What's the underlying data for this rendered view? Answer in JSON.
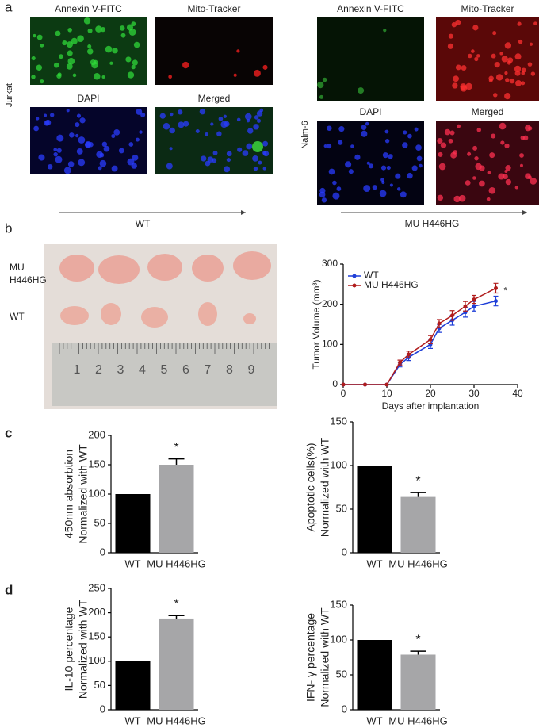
{
  "figure": {
    "panel_labels": [
      "a",
      "b",
      "c",
      "d"
    ]
  },
  "panel_a": {
    "groups": [
      {
        "cell_line": "Jurkat",
        "condition": "WT",
        "images": [
          "Annexin V-FITC",
          "Mito-Tracker",
          "DAPI",
          "Merged"
        ]
      },
      {
        "cell_line": "Nalm-6",
        "condition": "MU H446HG",
        "images": [
          "Annexin V-FITC",
          "Mito-Tracker",
          "DAPI",
          "Merged"
        ]
      }
    ]
  },
  "panel_b": {
    "photo_labels": [
      [
        "MU",
        "H446HG"
      ],
      [
        "WT"
      ]
    ],
    "ruler": [
      "1",
      "2",
      "3",
      "4",
      "5",
      "6",
      "7",
      "8",
      "9"
    ]
  },
  "chart_data": [
    {
      "type": "line",
      "ylabel": "Tumor Volume (mm³)",
      "xlabel": "Days after implantation",
      "x": [
        0,
        5,
        10,
        13,
        15,
        20,
        22,
        25,
        28,
        30,
        35
      ],
      "series": [
        {
          "name": "WT",
          "color": "#1f3fd8",
          "values": [
            0,
            0,
            0,
            50,
            68,
            100,
            140,
            160,
            180,
            195,
            208
          ],
          "errors": [
            0,
            0,
            0,
            6,
            8,
            10,
            10,
            12,
            12,
            12,
            12
          ]
        },
        {
          "name": "MU H446HG",
          "color": "#b01c1c",
          "values": [
            0,
            0,
            0,
            55,
            75,
            112,
            152,
            172,
            195,
            212,
            240
          ],
          "errors": [
            0,
            0,
            0,
            6,
            8,
            10,
            10,
            12,
            12,
            10,
            12
          ]
        }
      ],
      "xlim": [
        0,
        40
      ],
      "xticks": [
        0,
        10,
        20,
        30,
        40
      ],
      "ylim": [
        0,
        300
      ],
      "yticks": [
        0,
        100,
        200,
        300
      ],
      "annotation": "*"
    },
    {
      "type": "bar",
      "ylabel": [
        "450nm absorbtion",
        "Normalized with WT"
      ],
      "categories": [
        "WT",
        "MU H446HG"
      ],
      "values": [
        100,
        150
      ],
      "errors": [
        null,
        10
      ],
      "colors": [
        "#000000",
        "#a6a6a8"
      ],
      "ylim": [
        0,
        200
      ],
      "yticks": [
        0,
        50,
        100,
        150,
        200
      ],
      "annotation": "*"
    },
    {
      "type": "bar",
      "ylabel": [
        "Apoptotic cells(%)",
        "Normalized with WT"
      ],
      "categories": [
        "WT",
        "MU H446HG"
      ],
      "values": [
        100,
        64
      ],
      "errors": [
        null,
        5
      ],
      "colors": [
        "#000000",
        "#a6a6a8"
      ],
      "ylim": [
        0,
        150
      ],
      "yticks": [
        0,
        50,
        100,
        150
      ],
      "annotation": "*"
    },
    {
      "type": "bar",
      "ylabel": [
        "IL-10 percentage",
        "Normalized with WT"
      ],
      "categories": [
        "WT",
        "MU H446HG"
      ],
      "values": [
        100,
        188
      ],
      "errors": [
        null,
        6
      ],
      "colors": [
        "#000000",
        "#a6a6a8"
      ],
      "ylim": [
        0,
        250
      ],
      "yticks": [
        0,
        50,
        100,
        150,
        200,
        250
      ],
      "annotation": "*"
    },
    {
      "type": "bar",
      "ylabel": [
        "IFN- γ percentage",
        "Normalized with WT"
      ],
      "categories": [
        "WT",
        "MU H446HG"
      ],
      "values": [
        100,
        79
      ],
      "errors": [
        null,
        5
      ],
      "colors": [
        "#000000",
        "#a6a6a8"
      ],
      "ylim": [
        0,
        150
      ],
      "yticks": [
        0,
        50,
        100,
        150
      ],
      "annotation": "*"
    }
  ]
}
